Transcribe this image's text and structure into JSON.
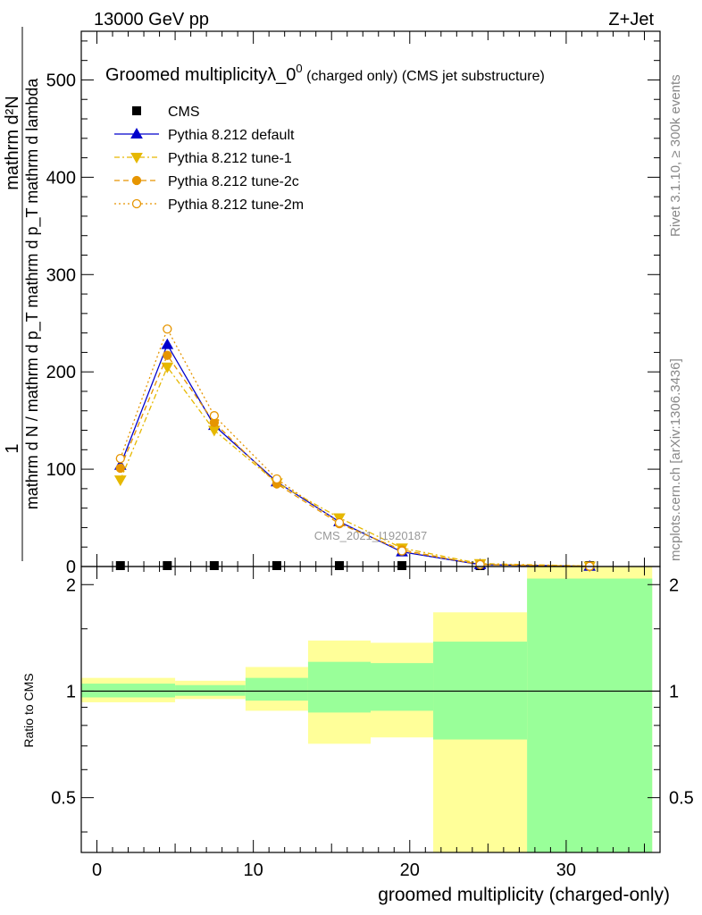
{
  "header": {
    "energy_label": "13000 GeV pp",
    "process_label": "Z+Jet"
  },
  "side_labels": {
    "rivet": "Rivet 3.1.10, ≥ 300k events",
    "mcplots": "mcplots.cern.ch [arXiv:1306.3436]"
  },
  "chart_data": [
    {
      "type": "line",
      "panel": "main",
      "title_main": "Groomed multiplicityλ_0",
      "title_sup": "0",
      "title_suffix": " (charged only) (CMS jet substructure)",
      "ylabel_numerator": "mathrm d²N",
      "ylabel_denominator": "mathrm d N / mathrm d p_T mathrm d p_T mathrm d lambda",
      "ylabel_one": "1",
      "watermark": "CMS_2021_I1920187",
      "ylim": [
        0,
        550
      ],
      "xlim": [
        -1,
        36
      ],
      "y_ticks": [
        0,
        100,
        200,
        300,
        400,
        500
      ],
      "y_tick_labels": [
        "0",
        "100",
        "200",
        "300",
        "400",
        "500"
      ],
      "bin_edges": [
        -1,
        3,
        6,
        9,
        14,
        18,
        22,
        27,
        36
      ],
      "x_points": [
        1.5,
        4.5,
        7.5,
        11.5,
        15.5,
        19.5,
        24.5,
        31.5
      ],
      "series": [
        {
          "name": "CMS",
          "style": "data",
          "color": "#000000",
          "values": [
            0.5,
            0.5,
            0.5,
            0.5,
            0.5,
            0.5,
            0.3,
            0.1
          ]
        },
        {
          "name": "Pythia 8.212 default",
          "style": "default",
          "color": "#0000cc",
          "values": [
            104,
            228,
            145,
            87,
            46,
            15,
            2,
            0.2
          ]
        },
        {
          "name": "Pythia 8.212 tune-1",
          "style": "tune1",
          "color": "#e6b800",
          "values": [
            89,
            205,
            140,
            86,
            50,
            19,
            3,
            0.5
          ]
        },
        {
          "name": "Pythia 8.212 tune-2c",
          "style": "tune2c",
          "color": "#e69500",
          "values": [
            101,
            217,
            148,
            85,
            44,
            17,
            2,
            0.3
          ]
        },
        {
          "name": "Pythia 8.212 tune-2m",
          "style": "tune2m",
          "color": "#e69500",
          "values": [
            111,
            244,
            155,
            90,
            45,
            16,
            2,
            0.3
          ]
        }
      ]
    },
    {
      "type": "area",
      "panel": "ratio",
      "ylabel": "Ratio to CMS",
      "xlabel": "groomed multiplicity (charged-only)",
      "ylim": [
        0.35,
        2.25
      ],
      "y_ticks": [
        0.5,
        1,
        2
      ],
      "y_tick_labels": [
        "0.5",
        "1",
        "2"
      ],
      "x_ticks": [
        0,
        10,
        20,
        30
      ],
      "x_tick_labels": [
        "0",
        "10",
        "20",
        "30"
      ],
      "bins": [
        {
          "x": [
            -1,
            5
          ],
          "green": [
            0.96,
            1.05
          ],
          "yellow": [
            0.93,
            1.09
          ]
        },
        {
          "x": [
            5,
            9.5
          ],
          "green": [
            0.97,
            1.04
          ],
          "yellow": [
            0.95,
            1.07
          ]
        },
        {
          "x": [
            9.5,
            13.5
          ],
          "green": [
            0.94,
            1.09
          ],
          "yellow": [
            0.88,
            1.17
          ]
        },
        {
          "x": [
            13.5,
            17.5
          ],
          "green": [
            0.87,
            1.21
          ],
          "yellow": [
            0.71,
            1.39
          ]
        },
        {
          "x": [
            17.5,
            21.5
          ],
          "green": [
            0.88,
            1.2
          ],
          "yellow": [
            0.74,
            1.37
          ]
        },
        {
          "x": [
            21.5,
            27.5
          ],
          "green": [
            0.73,
            1.38
          ],
          "yellow": [
            0.3,
            1.67
          ]
        },
        {
          "x": [
            27.5,
            35.5
          ],
          "green": [
            0.3,
            2.08
          ],
          "yellow": [
            0.3,
            2.4
          ]
        }
      ]
    }
  ]
}
